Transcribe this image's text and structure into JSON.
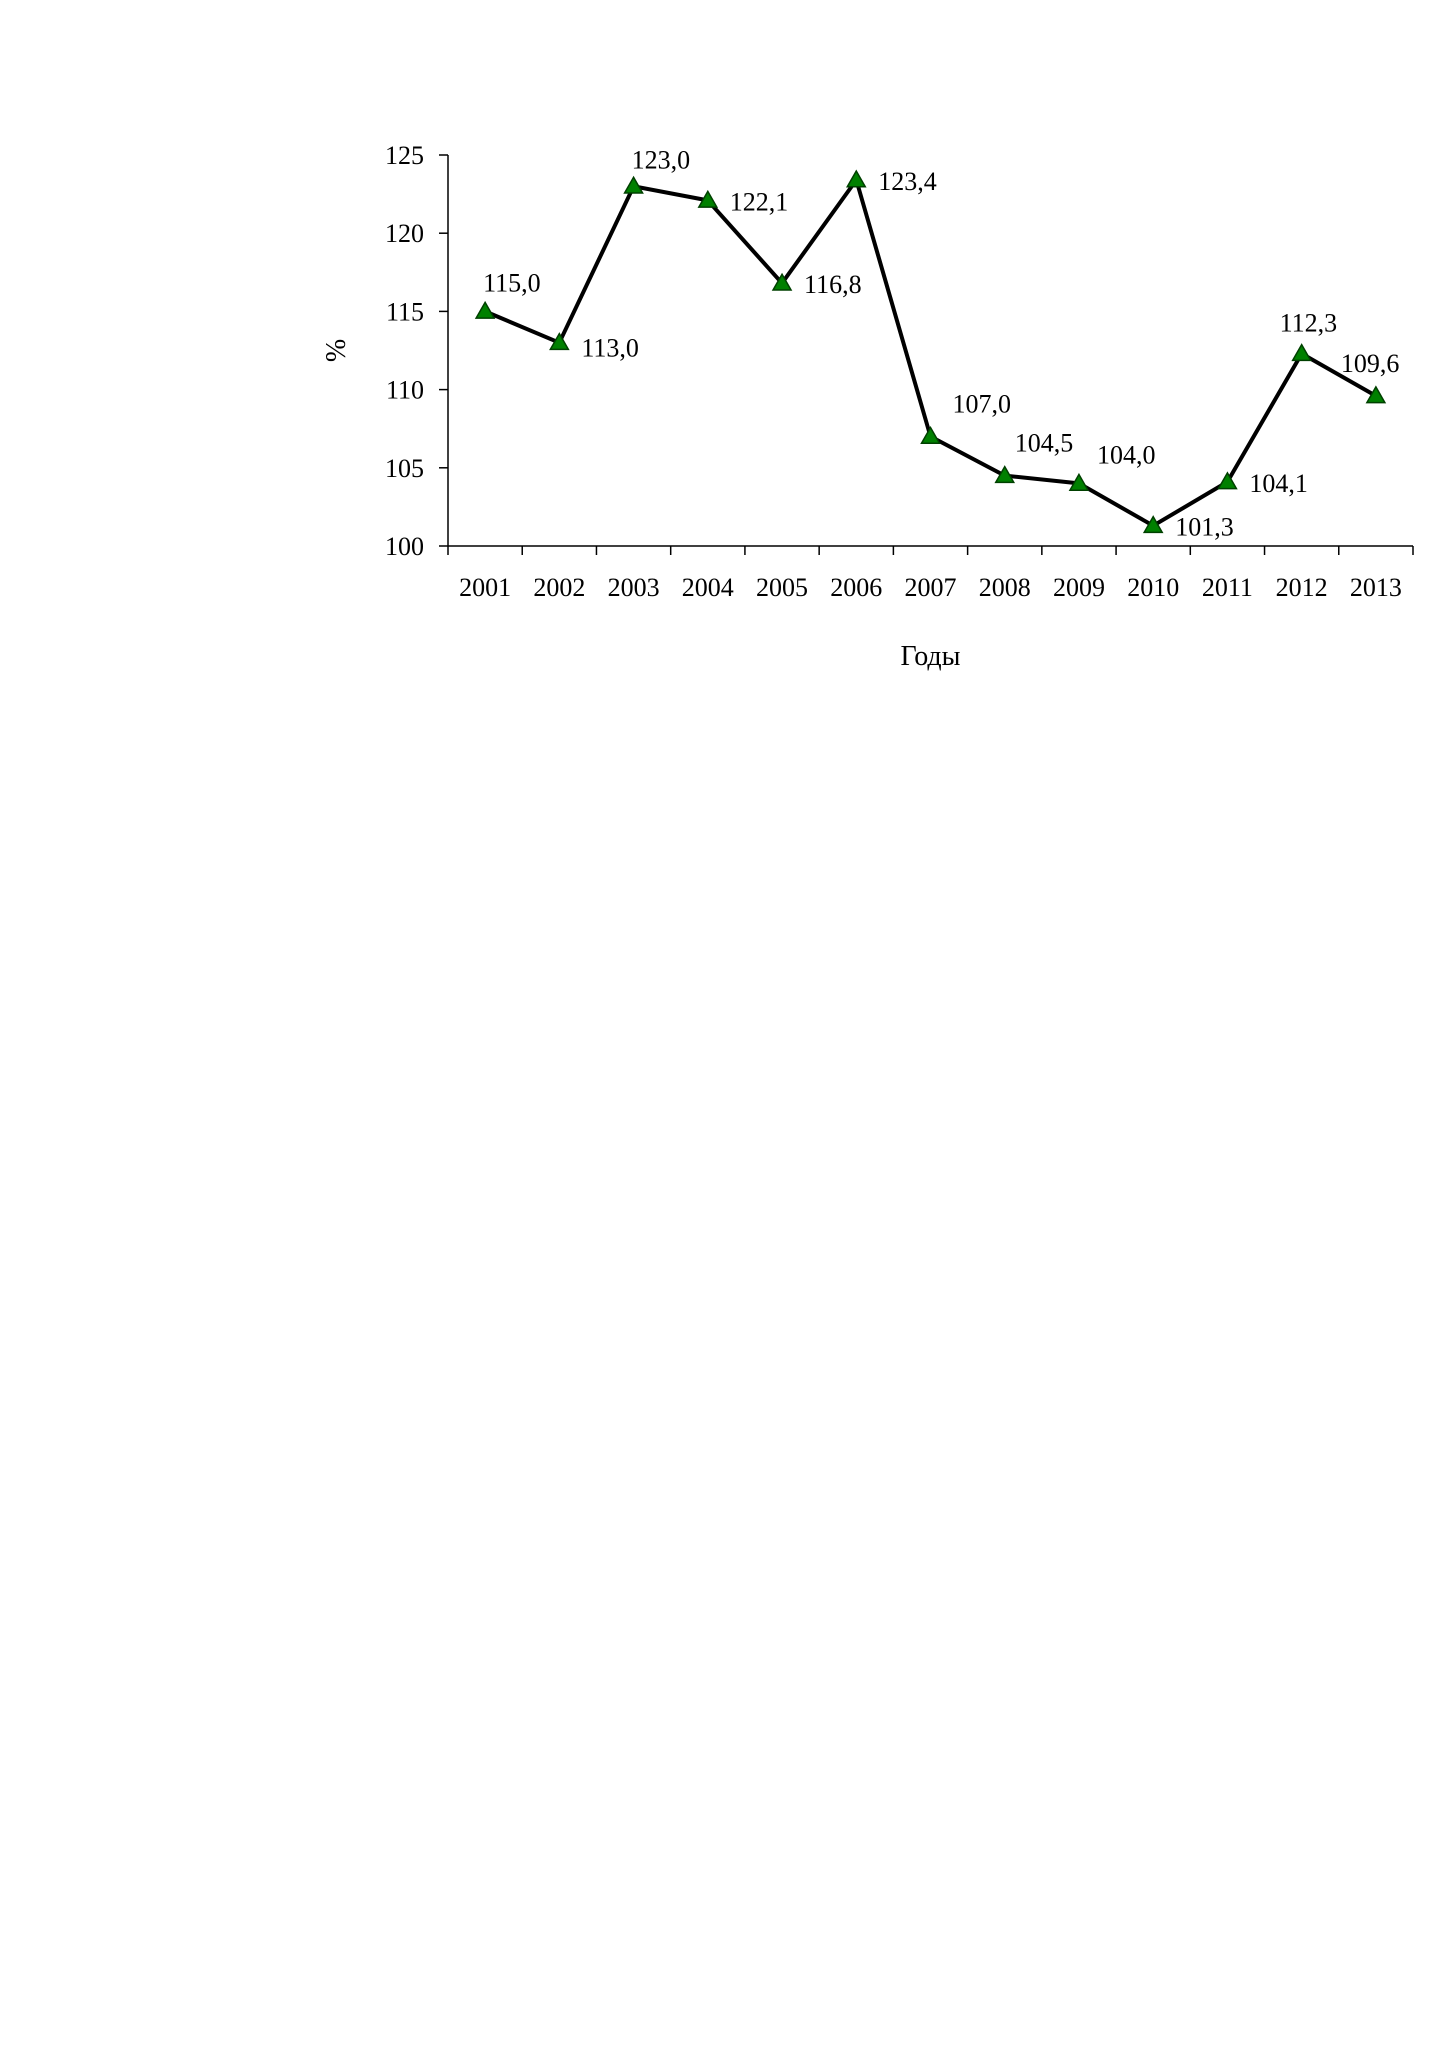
{
  "chart_data": {
    "type": "line",
    "title": "",
    "xlabel": "Годы",
    "ylabel": "%",
    "ylim": [
      100,
      125
    ],
    "yticks": [
      "100",
      "105",
      "110",
      "115",
      "120",
      "125"
    ],
    "grid": false,
    "categories": [
      "2001",
      "2002",
      "2003",
      "2004",
      "2005",
      "2006",
      "2007",
      "2008",
      "2009",
      "2010",
      "2011",
      "2012",
      "2013"
    ],
    "series": [
      {
        "values": [
          115.0,
          113.0,
          123.0,
          122.1,
          116.8,
          123.4,
          107.0,
          104.5,
          104.0,
          101.3,
          104.1,
          112.3,
          109.6
        ],
        "labels": [
          "115,0",
          "113,0",
          "123,0",
          "122,1",
          "116,8",
          "123,4",
          "107,0",
          "104,5",
          "104,0",
          "101,3",
          "104,1",
          "112,3",
          "109,6"
        ],
        "line_color": "#000000",
        "marker": "triangle",
        "marker_color": "#008000"
      }
    ]
  }
}
